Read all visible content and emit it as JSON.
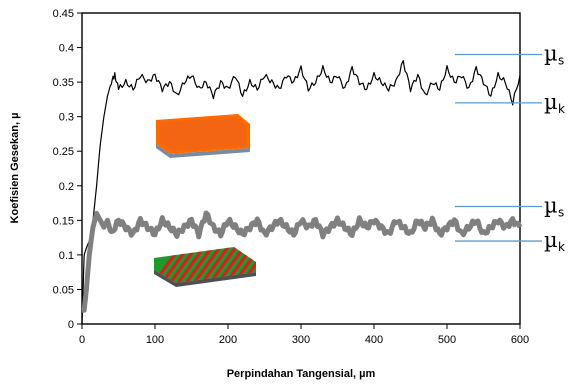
{
  "chart_data": {
    "type": "line",
    "xlabel": "Perpindahan Tangensial, µm",
    "ylabel": "Koefisien Gesekan, µ",
    "xlim": [
      0,
      600
    ],
    "ylim": [
      0,
      0.45
    ],
    "xticks": [
      0,
      100,
      200,
      300,
      400,
      500,
      600
    ],
    "yticks": [
      "0",
      "0.05",
      "0.1",
      "0.15",
      "0.2",
      "0.25",
      "0.3",
      "0.35",
      "0.4",
      "0.45"
    ],
    "grid": false,
    "series": [
      {
        "color": "#000000",
        "x": [
          0,
          3,
          6,
          10,
          15,
          20,
          25,
          30,
          35,
          40,
          45,
          50,
          60,
          70,
          80,
          90,
          100,
          110,
          120,
          130,
          140,
          150,
          160,
          170,
          180,
          190,
          200,
          210,
          220,
          230,
          240,
          250,
          260,
          270,
          280,
          290,
          300,
          310,
          320,
          330,
          340,
          350,
          360,
          370,
          380,
          390,
          400,
          410,
          420,
          430,
          440,
          450,
          460,
          470,
          480,
          490,
          500,
          510,
          520,
          530,
          540,
          550,
          560,
          570,
          580,
          590,
          600
        ],
        "values": [
          0,
          0.1,
          0.11,
          0.12,
          0.15,
          0.2,
          0.26,
          0.3,
          0.33,
          0.35,
          0.36,
          0.34,
          0.35,
          0.34,
          0.36,
          0.35,
          0.36,
          0.34,
          0.35,
          0.33,
          0.35,
          0.36,
          0.34,
          0.35,
          0.33,
          0.35,
          0.34,
          0.36,
          0.33,
          0.35,
          0.34,
          0.36,
          0.35,
          0.34,
          0.36,
          0.35,
          0.37,
          0.34,
          0.35,
          0.37,
          0.35,
          0.36,
          0.34,
          0.37,
          0.35,
          0.34,
          0.36,
          0.35,
          0.34,
          0.35,
          0.38,
          0.34,
          0.36,
          0.33,
          0.35,
          0.34,
          0.37,
          0.35,
          0.36,
          0.34,
          0.37,
          0.35,
          0.33,
          0.36,
          0.35,
          0.32,
          0.36
        ]
      },
      {
        "color": "#808080",
        "x": [
          0,
          3,
          6,
          10,
          15,
          20,
          25,
          30,
          35,
          40,
          50,
          60,
          70,
          80,
          90,
          100,
          110,
          120,
          130,
          140,
          150,
          160,
          170,
          180,
          190,
          200,
          210,
          220,
          230,
          240,
          250,
          260,
          270,
          280,
          290,
          300,
          310,
          320,
          330,
          340,
          350,
          360,
          370,
          380,
          390,
          400,
          410,
          420,
          430,
          440,
          450,
          460,
          470,
          480,
          490,
          500,
          510,
          520,
          530,
          540,
          550,
          560,
          570,
          580,
          590,
          600
        ],
        "values": [
          0.02,
          0.02,
          0.05,
          0.1,
          0.14,
          0.16,
          0.15,
          0.14,
          0.15,
          0.13,
          0.15,
          0.14,
          0.13,
          0.15,
          0.14,
          0.13,
          0.15,
          0.14,
          0.13,
          0.14,
          0.15,
          0.13,
          0.16,
          0.14,
          0.13,
          0.15,
          0.14,
          0.13,
          0.14,
          0.15,
          0.13,
          0.14,
          0.15,
          0.14,
          0.13,
          0.15,
          0.14,
          0.15,
          0.13,
          0.14,
          0.15,
          0.14,
          0.13,
          0.15,
          0.14,
          0.15,
          0.14,
          0.13,
          0.15,
          0.14,
          0.13,
          0.15,
          0.14,
          0.15,
          0.13,
          0.14,
          0.15,
          0.13,
          0.14,
          0.15,
          0.13,
          0.14,
          0.15,
          0.14,
          0.15,
          0.14
        ]
      }
    ],
    "annotations": [
      {
        "symbol": "µ",
        "subscript": "s",
        "y": 0.39,
        "line_color": "#5b9bd5"
      },
      {
        "symbol": "µ",
        "subscript": "k",
        "y": 0.32,
        "line_color": "#5b9bd5"
      },
      {
        "symbol": "µ",
        "subscript": "s",
        "y": 0.17,
        "line_color": "#5b9bd5"
      },
      {
        "symbol": "µ",
        "subscript": "k",
        "y": 0.12,
        "line_color": "#5b9bd5"
      }
    ],
    "insets": [
      {
        "name": "orange-surface-inset",
        "colors": [
          "#ff6a00",
          "#f05a10",
          "#7a8aa0"
        ]
      },
      {
        "name": "striped-surface-inset",
        "colors": [
          "#d42020",
          "#1f9a2a",
          "#505050"
        ]
      }
    ]
  }
}
